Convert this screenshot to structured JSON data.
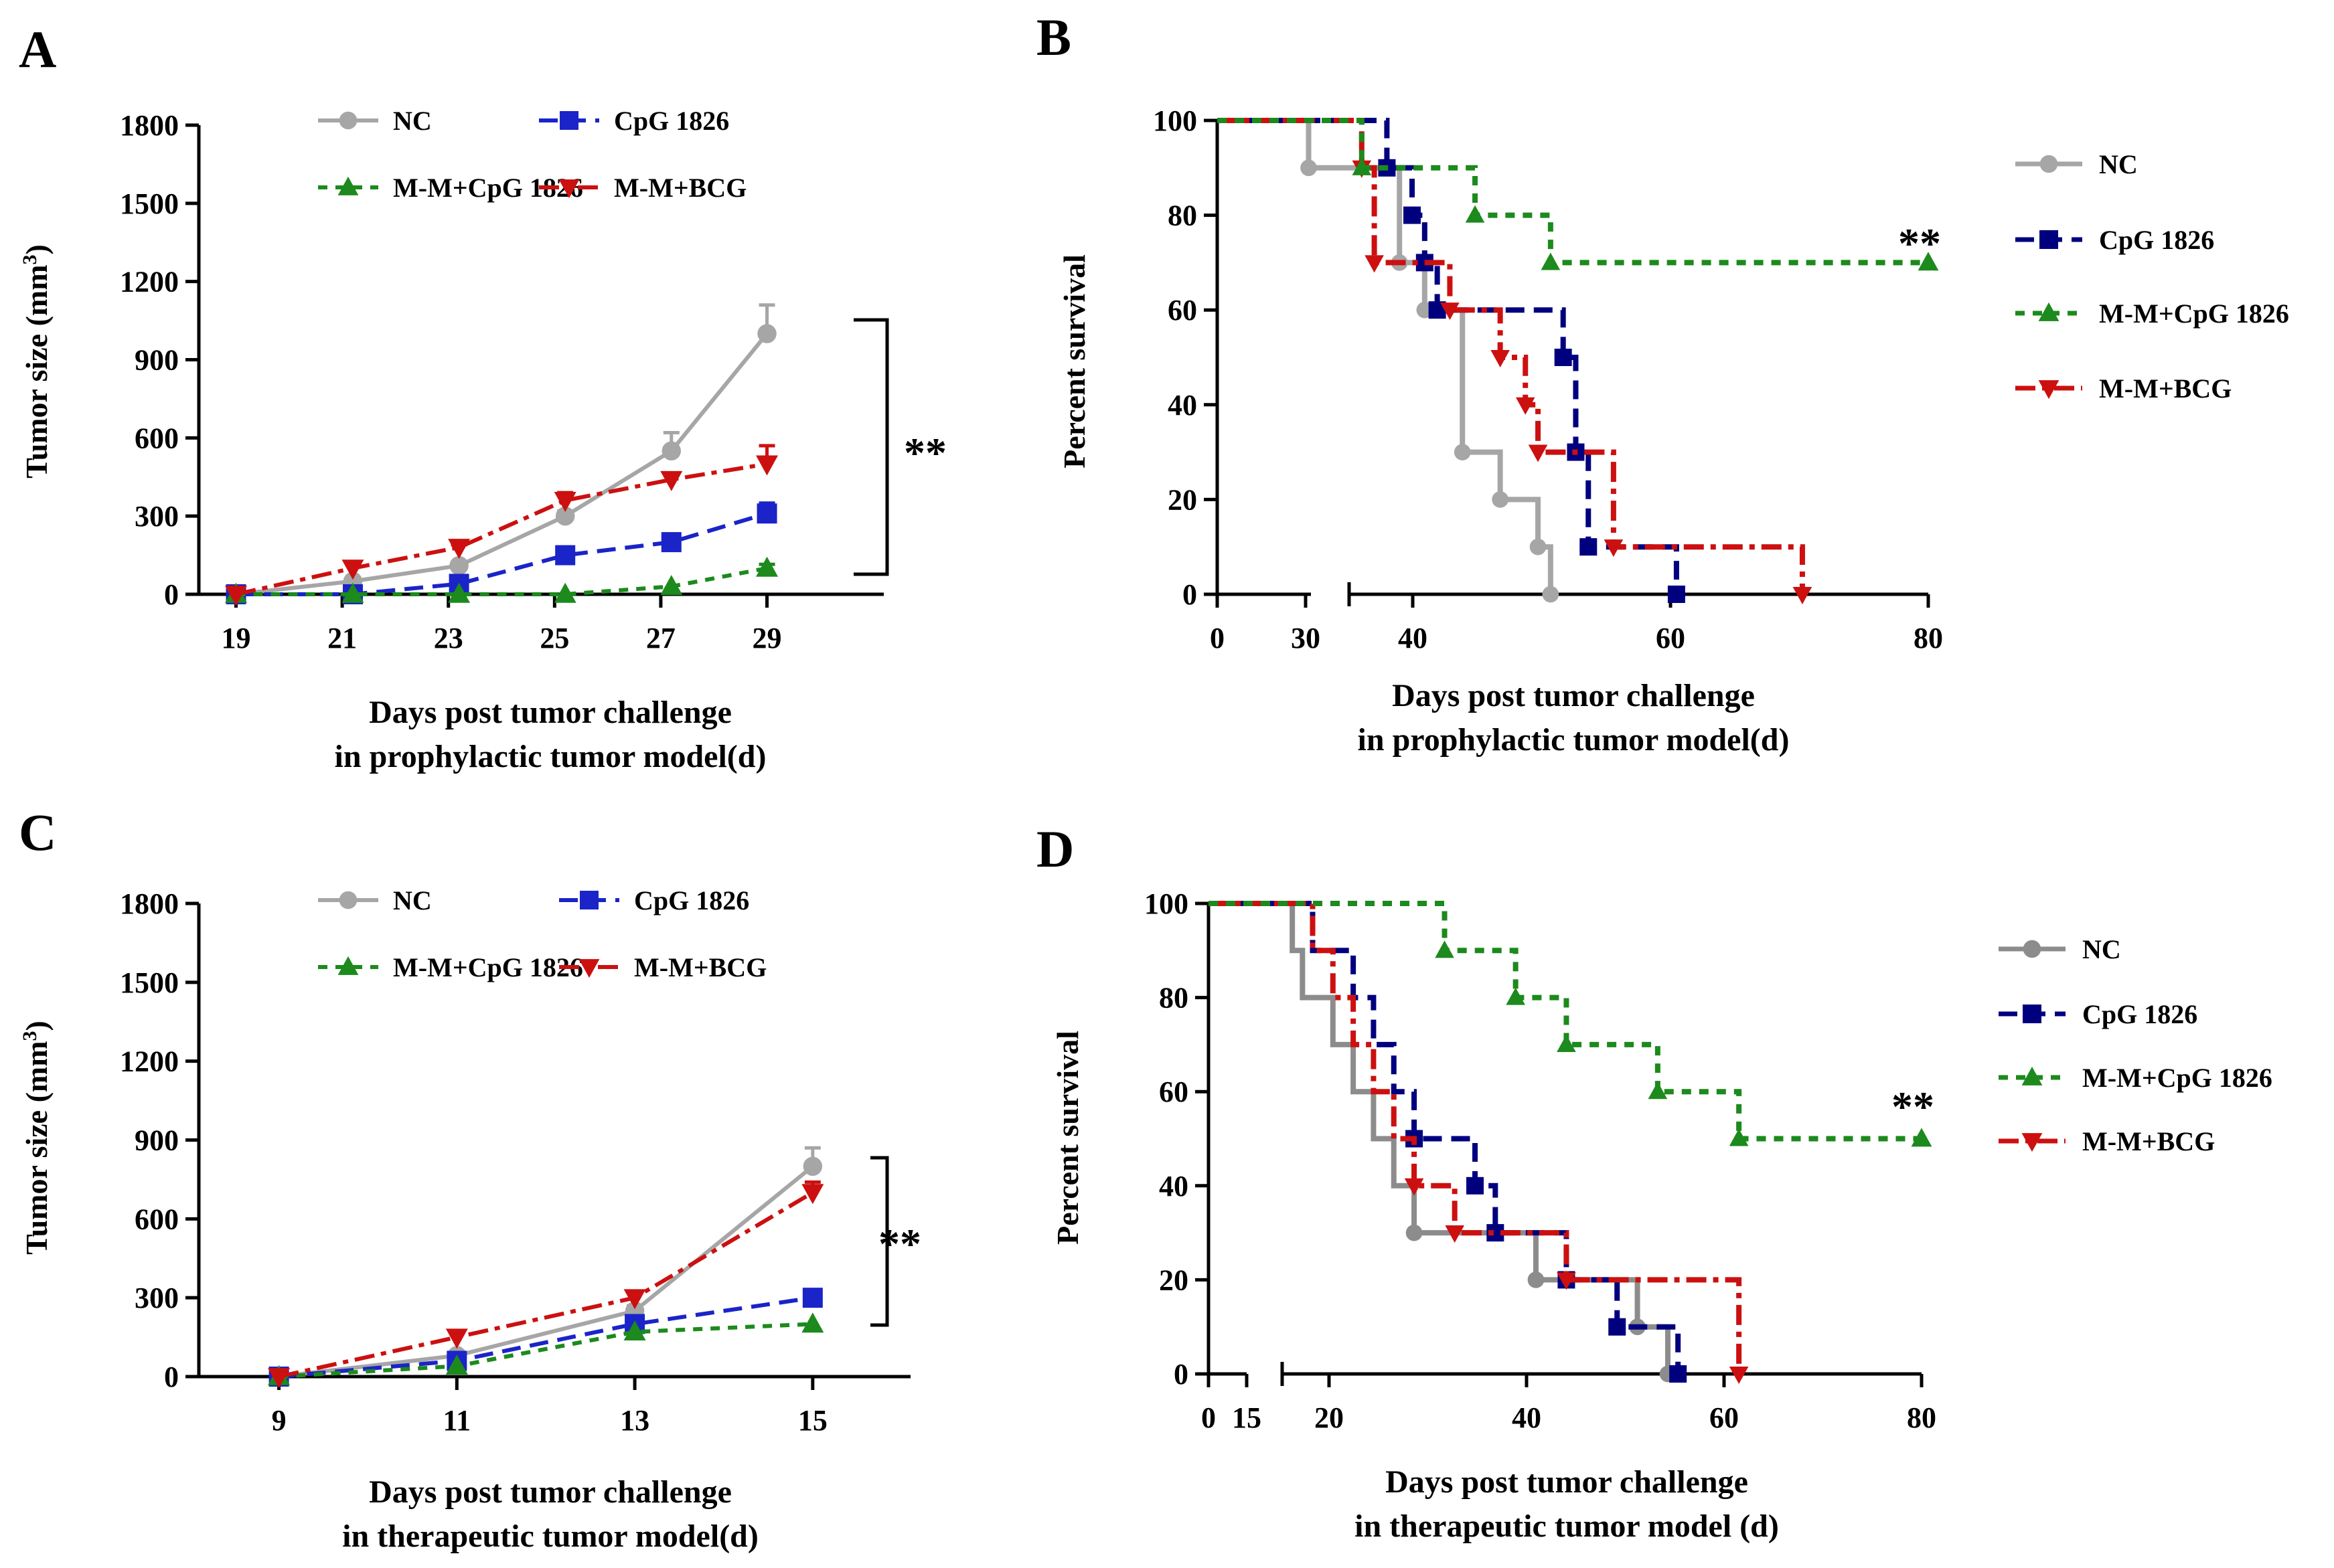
{
  "colors": {
    "NC": "#a6a6a6",
    "NC_D": "#8c8c8c",
    "CpG 1826": "#1a24c8",
    "CpG 1826_dark": "#00007f",
    "M-M+CpG 1826": "#1c8a1c",
    "M-M+BCG": "#cc1010",
    "axis": "#000000"
  },
  "chart_data": [
    {
      "panel": "A",
      "type": "line",
      "panel_label": "A",
      "xlabel": "Days post tumor challenge",
      "xlabel2": "in prophylactic tumor model(d)",
      "ylabel": "Tumor size (mm",
      "ylabel_sup": "3",
      "ylabel_end": ")",
      "xlim": [
        18.3,
        31.2
      ],
      "ylim": [
        0,
        1800
      ],
      "xticks": [
        19,
        21,
        23,
        25,
        27,
        29
      ],
      "yticks": [
        0,
        300,
        600,
        900,
        1200,
        1500,
        1800
      ],
      "significance": "**",
      "series": [
        {
          "name": "NC",
          "x": [
            19,
            21.2,
            23.2,
            25.2,
            27.2,
            29
          ],
          "y": [
            0,
            50,
            110,
            300,
            550,
            1000
          ],
          "err": [
            0,
            0,
            15,
            20,
            70,
            110
          ]
        },
        {
          "name": "CpG 1826",
          "x": [
            19,
            21.2,
            23.2,
            25.2,
            27.2,
            29
          ],
          "y": [
            0,
            0,
            40,
            150,
            200,
            310
          ],
          "err": [
            0,
            0,
            0,
            10,
            15,
            40
          ]
        },
        {
          "name": "M-M+CpG 1826",
          "x": [
            19,
            21.2,
            23.2,
            25.2,
            27.2,
            29
          ],
          "y": [
            0,
            0,
            0,
            0,
            30,
            100
          ],
          "err": [
            0,
            0,
            0,
            0,
            0,
            15
          ]
        },
        {
          "name": "M-M+BCG",
          "x": [
            19,
            21.2,
            23.2,
            25.2,
            27.2,
            29
          ],
          "y": [
            0,
            100,
            180,
            360,
            440,
            500
          ],
          "err": [
            0,
            0,
            10,
            30,
            20,
            70
          ]
        }
      ]
    },
    {
      "panel": "B",
      "type": "line",
      "panel_label": "B",
      "xlabel": "Days post tumor challenge",
      "xlabel2": "in prophylactic tumor model(d)",
      "ylabel": "Percent survival",
      "ylim": [
        0,
        100
      ],
      "xticks": [
        0,
        30,
        40,
        60,
        80
      ],
      "yticks": [
        0,
        20,
        40,
        60,
        80,
        100
      ],
      "axis_break": [
        32,
        34
      ],
      "significance": "**",
      "series": [
        {
          "name": "NC",
          "steps": [
            [
              0,
              100
            ],
            [
              31,
              100
            ],
            [
              31,
              90
            ],
            [
              38,
              90
            ],
            [
              38,
              70
            ],
            [
              40,
              70
            ],
            [
              40,
              60
            ],
            [
              43,
              60
            ],
            [
              43,
              30
            ],
            [
              46,
              30
            ],
            [
              46,
              20
            ],
            [
              49,
              20
            ],
            [
              49,
              10
            ],
            [
              50,
              10
            ],
            [
              50,
              0
            ]
          ]
        },
        {
          "name": "CpG 1826",
          "steps": [
            [
              0,
              100
            ],
            [
              37,
              100
            ],
            [
              37,
              90
            ],
            [
              39,
              90
            ],
            [
              39,
              80
            ],
            [
              40,
              80
            ],
            [
              40,
              70
            ],
            [
              41,
              70
            ],
            [
              41,
              60
            ],
            [
              51,
              60
            ],
            [
              51,
              50
            ],
            [
              52,
              50
            ],
            [
              52,
              30
            ],
            [
              53,
              30
            ],
            [
              53,
              10
            ],
            [
              60,
              10
            ],
            [
              60,
              0
            ]
          ]
        },
        {
          "name": "M-M+CpG 1826",
          "steps": [
            [
              0,
              100
            ],
            [
              35,
              100
            ],
            [
              35,
              90
            ],
            [
              44,
              90
            ],
            [
              44,
              80
            ],
            [
              50,
              80
            ],
            [
              50,
              70
            ],
            [
              80,
              70
            ]
          ]
        },
        {
          "name": "M-M+BCG",
          "steps": [
            [
              0,
              100
            ],
            [
              35,
              100
            ],
            [
              35,
              90
            ],
            [
              36,
              90
            ],
            [
              36,
              70
            ],
            [
              39,
              70
            ],
            [
              39,
              70
            ],
            [
              42,
              70
            ],
            [
              42,
              60
            ],
            [
              46,
              60
            ],
            [
              46,
              50
            ],
            [
              48,
              50
            ],
            [
              48,
              40
            ],
            [
              49,
              40
            ],
            [
              49,
              30
            ],
            [
              55,
              30
            ],
            [
              55,
              10
            ],
            [
              70,
              10
            ],
            [
              70,
              0
            ]
          ]
        }
      ]
    },
    {
      "panel": "C",
      "type": "line",
      "panel_label": "C",
      "xlabel": "Days post tumor challenge",
      "xlabel2": "in therapeutic tumor model(d)",
      "ylabel": "Tumor size (mm",
      "ylabel_sup": "3",
      "ylabel_end": ")",
      "xlim": [
        8.1,
        16.1
      ],
      "ylim": [
        0,
        1800
      ],
      "xticks": [
        9,
        11,
        13,
        15
      ],
      "yticks": [
        0,
        300,
        600,
        900,
        1200,
        1500,
        1800
      ],
      "significance": "**",
      "series": [
        {
          "name": "NC",
          "x": [
            9,
            11,
            13,
            15
          ],
          "y": [
            0,
            80,
            250,
            800
          ],
          "err": [
            0,
            0,
            20,
            70
          ]
        },
        {
          "name": "CpG 1826",
          "x": [
            9,
            11,
            13,
            15
          ],
          "y": [
            0,
            60,
            200,
            300
          ],
          "err": [
            0,
            0,
            0,
            15
          ]
        },
        {
          "name": "M-M+CpG 1826",
          "x": [
            9,
            11,
            13,
            15
          ],
          "y": [
            0,
            40,
            170,
            200
          ],
          "err": [
            0,
            0,
            0,
            0
          ]
        },
        {
          "name": "M-M+BCG",
          "x": [
            9,
            11,
            13,
            15
          ],
          "y": [
            0,
            150,
            300,
            700
          ],
          "err": [
            0,
            0,
            0,
            40
          ]
        }
      ]
    },
    {
      "panel": "D",
      "type": "line",
      "panel_label": "D",
      "xlabel": "Days post tumor challenge",
      "xlabel2": "in therapeutic tumor model  (d)",
      "ylabel": "Percent survival",
      "ylim": [
        0,
        100
      ],
      "xticks": [
        0,
        15,
        20,
        40,
        60,
        80
      ],
      "yticks": [
        0,
        20,
        40,
        60,
        80,
        100
      ],
      "axis_break": [
        16,
        17
      ],
      "significance": "**",
      "series": [
        {
          "name": "NC",
          "steps": [
            [
              0,
              100
            ],
            [
              18,
              100
            ],
            [
              18,
              90
            ],
            [
              19,
              90
            ],
            [
              19,
              80
            ],
            [
              22,
              80
            ],
            [
              22,
              70
            ],
            [
              24,
              70
            ],
            [
              24,
              60
            ],
            [
              26,
              60
            ],
            [
              26,
              50
            ],
            [
              28,
              50
            ],
            [
              28,
              40
            ],
            [
              30,
              40
            ],
            [
              30,
              30
            ],
            [
              42,
              30
            ],
            [
              42,
              20
            ],
            [
              52,
              20
            ],
            [
              52,
              10
            ],
            [
              55,
              10
            ],
            [
              55,
              0
            ]
          ]
        },
        {
          "name": "CpG 1826",
          "steps": [
            [
              0,
              100
            ],
            [
              20,
              100
            ],
            [
              20,
              90
            ],
            [
              24,
              90
            ],
            [
              24,
              80
            ],
            [
              26,
              80
            ],
            [
              26,
              70
            ],
            [
              28,
              70
            ],
            [
              28,
              60
            ],
            [
              30,
              60
            ],
            [
              30,
              50
            ],
            [
              36,
              50
            ],
            [
              36,
              40
            ],
            [
              38,
              40
            ],
            [
              38,
              30
            ],
            [
              45,
              30
            ],
            [
              45,
              20
            ],
            [
              50,
              20
            ],
            [
              50,
              10
            ],
            [
              56,
              10
            ],
            [
              56,
              0
            ]
          ]
        },
        {
          "name": "M-M+CpG 1826",
          "steps": [
            [
              0,
              100
            ],
            [
              33,
              100
            ],
            [
              33,
              90
            ],
            [
              40,
              90
            ],
            [
              40,
              80
            ],
            [
              45,
              80
            ],
            [
              45,
              70
            ],
            [
              54,
              70
            ],
            [
              54,
              60
            ],
            [
              62,
              60
            ],
            [
              62,
              50
            ],
            [
              80,
              50
            ]
          ]
        },
        {
          "name": "M-M+BCG",
          "steps": [
            [
              0,
              100
            ],
            [
              20,
              100
            ],
            [
              20,
              90
            ],
            [
              22,
              90
            ],
            [
              22,
              80
            ],
            [
              24,
              80
            ],
            [
              24,
              70
            ],
            [
              26,
              70
            ],
            [
              26,
              60
            ],
            [
              28,
              60
            ],
            [
              28,
              50
            ],
            [
              30,
              50
            ],
            [
              30,
              40
            ],
            [
              34,
              40
            ],
            [
              34,
              30
            ],
            [
              45,
              30
            ],
            [
              45,
              20
            ],
            [
              62,
              20
            ],
            [
              62,
              0
            ]
          ]
        }
      ]
    }
  ]
}
